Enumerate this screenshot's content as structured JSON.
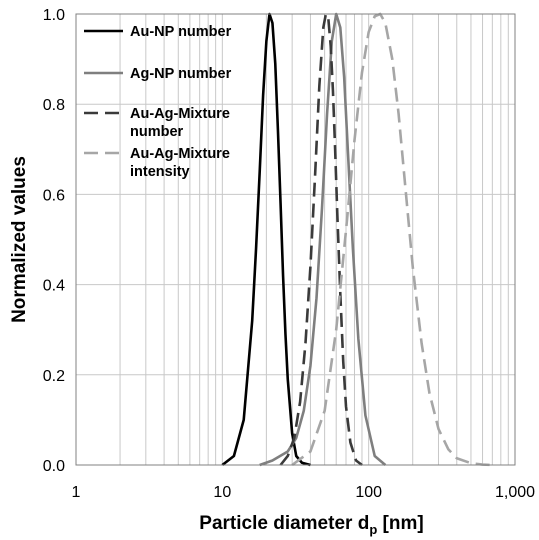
{
  "chart_data": {
    "type": "line",
    "title": "",
    "xlabel": "Particle diameter d",
    "xlabel_sub": "p",
    "xlabel_unit": " [nm]",
    "ylabel": "Normalized values",
    "xscale": "log",
    "xlim": [
      1,
      1000
    ],
    "ylim": [
      0,
      1
    ],
    "grid": true,
    "legend_position": "top-left",
    "x_ticks": [
      1,
      10,
      100,
      1000
    ],
    "x_tick_labels": [
      "1",
      "10",
      "100",
      "1,000"
    ],
    "y_ticks": [
      0,
      0.2,
      0.4,
      0.6,
      0.8,
      1.0
    ],
    "y_tick_labels": [
      "0.0",
      "0.2",
      "0.4",
      "0.6",
      "0.8",
      "1.0"
    ],
    "series": [
      {
        "name": "Au-NP number",
        "color": "#000000",
        "dash": "solid",
        "x": [
          10,
          12,
          14,
          16,
          17,
          18,
          19,
          20,
          21,
          22,
          23,
          24,
          25,
          26,
          27,
          28,
          30,
          32,
          35,
          40
        ],
        "y": [
          0.0,
          0.02,
          0.1,
          0.32,
          0.48,
          0.65,
          0.82,
          0.94,
          1.0,
          0.98,
          0.89,
          0.74,
          0.58,
          0.42,
          0.29,
          0.19,
          0.07,
          0.02,
          0.005,
          0.0
        ]
      },
      {
        "name": "Ag-NP number",
        "color": "#7f7f7f",
        "dash": "solid",
        "x": [
          18,
          22,
          28,
          32,
          36,
          40,
          44,
          48,
          52,
          56,
          60,
          64,
          68,
          72,
          78,
          85,
          95,
          110,
          130
        ],
        "y": [
          0.0,
          0.01,
          0.03,
          0.06,
          0.12,
          0.22,
          0.37,
          0.57,
          0.78,
          0.94,
          1.0,
          0.97,
          0.86,
          0.7,
          0.48,
          0.28,
          0.11,
          0.02,
          0.0
        ]
      },
      {
        "name": "Au-Ag-Mixture number",
        "color": "#3a3a3a",
        "dash": "dash",
        "x": [
          25,
          28,
          31,
          34,
          37,
          40,
          43,
          46,
          49,
          51,
          53,
          55,
          57,
          59,
          61,
          64,
          67,
          70,
          75,
          82,
          90
        ],
        "y": [
          0.0,
          0.02,
          0.06,
          0.14,
          0.27,
          0.44,
          0.64,
          0.84,
          0.97,
          1.0,
          0.99,
          0.93,
          0.83,
          0.7,
          0.56,
          0.38,
          0.23,
          0.13,
          0.05,
          0.01,
          0.0
        ]
      },
      {
        "name": "Au-Ag-Mixture intensity",
        "color": "#a6a6a6",
        "dash": "dash",
        "x": [
          30,
          40,
          50,
          60,
          70,
          80,
          90,
          100,
          110,
          120,
          130,
          145,
          160,
          180,
          200,
          230,
          260,
          300,
          350,
          400,
          500,
          600,
          700
        ],
        "y": [
          0.0,
          0.03,
          0.12,
          0.3,
          0.52,
          0.72,
          0.87,
          0.96,
          0.995,
          1.0,
          0.98,
          0.9,
          0.78,
          0.6,
          0.44,
          0.27,
          0.16,
          0.08,
          0.035,
          0.015,
          0.004,
          0.001,
          0.0
        ]
      }
    ]
  }
}
